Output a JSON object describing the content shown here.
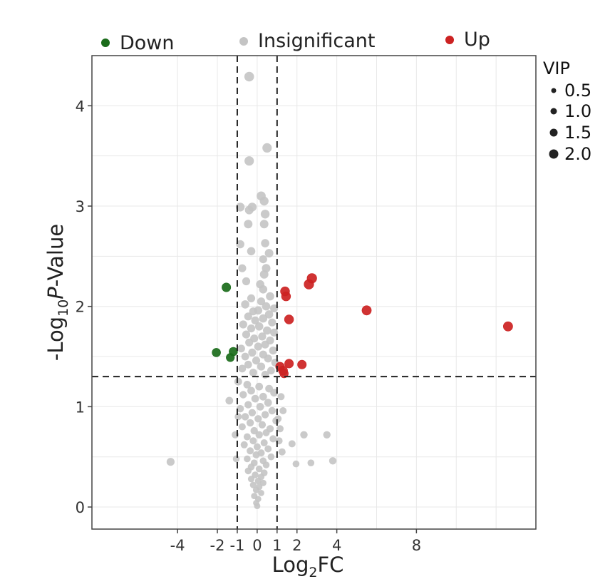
{
  "chart_data": {
    "type": "scatter",
    "title": "",
    "xlabel_main": "Log",
    "xlabel_sub": "2",
    "xlabel_tail": "FC",
    "ylabel_main": "-Log",
    "ylabel_sub": "10",
    "ylabel_italic": "P",
    "ylabel_tail": "-Value",
    "xlim": [
      -8.3,
      14.0
    ],
    "ylim": [
      -0.22,
      4.5
    ],
    "x_ticks": [
      {
        "value": -4,
        "label": "-4"
      },
      {
        "value": -2,
        "label": "-2"
      },
      {
        "value": -1,
        "label": "-1"
      },
      {
        "value": 0,
        "label": "0"
      },
      {
        "value": 1,
        "label": "1"
      },
      {
        "value": 2,
        "label": "2"
      },
      {
        "value": 4,
        "label": "4"
      },
      {
        "value": 8,
        "label": "8"
      }
    ],
    "y_ticks": [
      {
        "value": 0,
        "label": "0"
      },
      {
        "value": 1,
        "label": "1"
      },
      {
        "value": 2,
        "label": "2"
      },
      {
        "value": 3,
        "label": "3"
      },
      {
        "value": 4,
        "label": "4"
      }
    ],
    "x_grid": [
      -4,
      -2,
      0,
      2,
      4,
      6,
      8,
      10,
      12
    ],
    "y_grid": [
      0,
      0.5,
      1,
      1.5,
      2,
      2.5,
      3,
      3.5,
      4
    ],
    "grid": true,
    "thresholds": {
      "x": [
        -1,
        1
      ],
      "y": 1.3
    },
    "legend": {
      "placement": "top",
      "items": [
        {
          "label": "Down",
          "color": "#1a6b1a"
        },
        {
          "label": "Insignificant",
          "color": "#c4c4c4"
        },
        {
          "label": "Up",
          "color": "#cc2222"
        }
      ]
    },
    "size_legend": {
      "title": "VIP",
      "placement": "right",
      "items": [
        {
          "label": "0.5",
          "vip": 0.5
        },
        {
          "label": "1.0",
          "vip": 1.0
        },
        {
          "label": "1.5",
          "vip": 1.5
        },
        {
          "label": "2.0",
          "vip": 2.0
        }
      ]
    },
    "series": [
      {
        "name": "Down",
        "color": "#1a6b1a",
        "points": [
          {
            "x": -1.55,
            "y": 2.19,
            "vip": 1.6
          },
          {
            "x": -2.05,
            "y": 1.54,
            "vip": 1.5
          },
          {
            "x": -1.2,
            "y": 1.55,
            "vip": 1.5
          },
          {
            "x": -1.35,
            "y": 1.49,
            "vip": 1.4
          }
        ]
      },
      {
        "name": "Insignificant",
        "color": "#c4c4c4",
        "points": [
          {
            "x": -4.35,
            "y": 0.45,
            "vip": 1.3
          },
          {
            "x": -0.4,
            "y": 4.29,
            "vip": 1.9
          },
          {
            "x": 0.5,
            "y": 3.58,
            "vip": 1.8
          },
          {
            "x": -0.4,
            "y": 3.45,
            "vip": 1.8
          },
          {
            "x": 0.2,
            "y": 3.1,
            "vip": 1.7
          },
          {
            "x": 0.35,
            "y": 3.05,
            "vip": 1.6
          },
          {
            "x": -0.85,
            "y": 2.99,
            "vip": 1.6
          },
          {
            "x": -0.25,
            "y": 2.99,
            "vip": 1.6
          },
          {
            "x": 0.4,
            "y": 2.92,
            "vip": 1.6
          },
          {
            "x": -0.4,
            "y": 2.96,
            "vip": 1.5
          },
          {
            "x": -0.45,
            "y": 2.82,
            "vip": 1.5
          },
          {
            "x": 0.35,
            "y": 2.82,
            "vip": 1.5
          },
          {
            "x": -0.85,
            "y": 2.62,
            "vip": 1.4
          },
          {
            "x": 0.4,
            "y": 2.63,
            "vip": 1.4
          },
          {
            "x": -0.3,
            "y": 2.55,
            "vip": 1.4
          },
          {
            "x": 0.6,
            "y": 2.53,
            "vip": 1.5
          },
          {
            "x": 0.3,
            "y": 2.47,
            "vip": 1.3
          },
          {
            "x": -0.75,
            "y": 2.38,
            "vip": 1.3
          },
          {
            "x": 0.45,
            "y": 2.38,
            "vip": 1.5
          },
          {
            "x": 0.35,
            "y": 2.32,
            "vip": 1.5
          },
          {
            "x": -0.55,
            "y": 2.25,
            "vip": 1.3
          },
          {
            "x": 0.15,
            "y": 2.22,
            "vip": 1.4
          },
          {
            "x": 0.3,
            "y": 2.17,
            "vip": 1.4
          },
          {
            "x": 0.65,
            "y": 2.1,
            "vip": 1.4
          },
          {
            "x": -0.3,
            "y": 2.08,
            "vip": 1.3
          },
          {
            "x": 0.2,
            "y": 2.05,
            "vip": 1.3
          },
          {
            "x": -0.6,
            "y": 2.02,
            "vip": 1.4
          },
          {
            "x": 0.45,
            "y": 2.0,
            "vip": 1.4
          },
          {
            "x": 0.85,
            "y": 1.98,
            "vip": 1.3
          },
          {
            "x": 0.05,
            "y": 1.96,
            "vip": 1.4
          },
          {
            "x": -0.2,
            "y": 1.95,
            "vip": 1.3
          },
          {
            "x": 0.6,
            "y": 1.92,
            "vip": 1.4
          },
          {
            "x": -0.45,
            "y": 1.9,
            "vip": 1.3
          },
          {
            "x": 0.3,
            "y": 1.88,
            "vip": 1.4
          },
          {
            "x": -0.1,
            "y": 1.86,
            "vip": 1.3
          },
          {
            "x": 0.75,
            "y": 1.84,
            "vip": 1.3
          },
          {
            "x": -0.7,
            "y": 1.82,
            "vip": 1.3
          },
          {
            "x": 0.1,
            "y": 1.8,
            "vip": 1.4
          },
          {
            "x": -0.3,
            "y": 1.78,
            "vip": 1.3
          },
          {
            "x": 0.5,
            "y": 1.76,
            "vip": 1.4
          },
          {
            "x": 0.85,
            "y": 1.74,
            "vip": 1.3
          },
          {
            "x": -0.55,
            "y": 1.72,
            "vip": 1.3
          },
          {
            "x": 0.25,
            "y": 1.7,
            "vip": 1.3
          },
          {
            "x": -0.15,
            "y": 1.68,
            "vip": 1.3
          },
          {
            "x": 0.65,
            "y": 1.66,
            "vip": 1.3
          },
          {
            "x": -0.4,
            "y": 1.64,
            "vip": 1.3
          },
          {
            "x": 0.4,
            "y": 1.62,
            "vip": 1.3
          },
          {
            "x": 0.05,
            "y": 1.6,
            "vip": 1.3
          },
          {
            "x": -0.8,
            "y": 1.58,
            "vip": 1.2
          },
          {
            "x": 0.8,
            "y": 1.56,
            "vip": 1.3
          },
          {
            "x": -0.25,
            "y": 1.54,
            "vip": 1.3
          },
          {
            "x": 0.3,
            "y": 1.52,
            "vip": 1.3
          },
          {
            "x": -0.6,
            "y": 1.5,
            "vip": 1.2
          },
          {
            "x": 0.55,
            "y": 1.48,
            "vip": 1.3
          },
          {
            "x": -0.05,
            "y": 1.46,
            "vip": 1.3
          },
          {
            "x": 0.9,
            "y": 1.44,
            "vip": 1.2
          },
          {
            "x": -0.45,
            "y": 1.42,
            "vip": 1.2
          },
          {
            "x": 0.2,
            "y": 1.4,
            "vip": 1.3
          },
          {
            "x": -0.75,
            "y": 1.38,
            "vip": 1.2
          },
          {
            "x": 0.7,
            "y": 1.36,
            "vip": 1.2
          },
          {
            "x": -0.2,
            "y": 1.34,
            "vip": 1.2
          },
          {
            "x": 0.4,
            "y": 1.32,
            "vip": 1.2
          },
          {
            "x": -0.95,
            "y": 1.25,
            "vip": 1.2
          },
          {
            "x": -0.5,
            "y": 1.22,
            "vip": 1.2
          },
          {
            "x": 0.1,
            "y": 1.2,
            "vip": 1.2
          },
          {
            "x": 0.6,
            "y": 1.18,
            "vip": 1.2
          },
          {
            "x": -0.3,
            "y": 1.16,
            "vip": 1.2
          },
          {
            "x": 0.85,
            "y": 1.14,
            "vip": 1.2
          },
          {
            "x": -0.7,
            "y": 1.12,
            "vip": 1.1
          },
          {
            "x": 0.3,
            "y": 1.1,
            "vip": 1.2
          },
          {
            "x": -0.1,
            "y": 1.08,
            "vip": 1.2
          },
          {
            "x": -1.4,
            "y": 1.06,
            "vip": 1.2
          },
          {
            "x": 0.55,
            "y": 1.04,
            "vip": 1.2
          },
          {
            "x": -0.45,
            "y": 1.02,
            "vip": 1.1
          },
          {
            "x": 0.15,
            "y": 1.0,
            "vip": 1.2
          },
          {
            "x": -0.85,
            "y": 0.98,
            "vip": 1.1
          },
          {
            "x": 0.75,
            "y": 0.96,
            "vip": 1.1
          },
          {
            "x": -0.25,
            "y": 0.94,
            "vip": 1.1
          },
          {
            "x": 0.4,
            "y": 0.92,
            "vip": 1.1
          },
          {
            "x": -0.6,
            "y": 0.9,
            "vip": 1.1
          },
          {
            "x": 0.05,
            "y": 0.88,
            "vip": 1.1
          },
          {
            "x": 0.95,
            "y": 0.86,
            "vip": 1.1
          },
          {
            "x": -0.35,
            "y": 0.84,
            "vip": 1.1
          },
          {
            "x": 0.25,
            "y": 0.82,
            "vip": 1.1
          },
          {
            "x": -0.75,
            "y": 0.8,
            "vip": 1.0
          },
          {
            "x": 0.65,
            "y": 0.78,
            "vip": 1.1
          },
          {
            "x": -0.15,
            "y": 0.76,
            "vip": 1.1
          },
          {
            "x": 0.45,
            "y": 0.74,
            "vip": 1.0
          },
          {
            "x": -1.1,
            "y": 0.72,
            "vip": 1.0
          },
          {
            "x": 0.1,
            "y": 0.72,
            "vip": 1.1
          },
          {
            "x": -0.5,
            "y": 0.7,
            "vip": 1.0
          },
          {
            "x": 0.8,
            "y": 0.68,
            "vip": 1.0
          },
          {
            "x": -0.2,
            "y": 0.66,
            "vip": 1.0
          },
          {
            "x": 0.35,
            "y": 0.64,
            "vip": 1.0
          },
          {
            "x": -0.65,
            "y": 0.62,
            "vip": 1.0
          },
          {
            "x": 0.0,
            "y": 0.6,
            "vip": 1.0
          },
          {
            "x": 0.55,
            "y": 0.58,
            "vip": 1.0
          },
          {
            "x": -0.35,
            "y": 0.56,
            "vip": 1.0
          },
          {
            "x": 0.2,
            "y": 0.54,
            "vip": 1.0
          },
          {
            "x": -0.05,
            "y": 0.52,
            "vip": 1.0
          },
          {
            "x": 0.7,
            "y": 0.5,
            "vip": 0.9
          },
          {
            "x": -0.5,
            "y": 0.48,
            "vip": 0.9
          },
          {
            "x": 0.3,
            "y": 0.46,
            "vip": 0.9
          },
          {
            "x": -0.15,
            "y": 0.44,
            "vip": 0.9
          },
          {
            "x": 0.45,
            "y": 0.42,
            "vip": 0.9
          },
          {
            "x": -0.3,
            "y": 0.4,
            "vip": 0.9
          },
          {
            "x": 0.1,
            "y": 0.38,
            "vip": 0.9
          },
          {
            "x": -0.45,
            "y": 0.36,
            "vip": 0.9
          },
          {
            "x": 0.35,
            "y": 0.34,
            "vip": 0.9
          },
          {
            "x": -0.1,
            "y": 0.32,
            "vip": 0.9
          },
          {
            "x": 0.2,
            "y": 0.3,
            "vip": 0.8
          },
          {
            "x": -0.3,
            "y": 0.28,
            "vip": 0.8
          },
          {
            "x": 0.05,
            "y": 0.26,
            "vip": 0.8
          },
          {
            "x": 0.3,
            "y": 0.24,
            "vip": 0.8
          },
          {
            "x": -0.2,
            "y": 0.22,
            "vip": 0.8
          },
          {
            "x": 0.1,
            "y": 0.2,
            "vip": 0.8
          },
          {
            "x": -0.05,
            "y": 0.17,
            "vip": 0.8
          },
          {
            "x": 0.2,
            "y": 0.14,
            "vip": 0.7
          },
          {
            "x": -0.15,
            "y": 0.11,
            "vip": 0.7
          },
          {
            "x": 0.05,
            "y": 0.08,
            "vip": 0.7
          },
          {
            "x": -0.05,
            "y": 0.04,
            "vip": 0.7
          },
          {
            "x": 0.0,
            "y": 0.01,
            "vip": 0.7
          },
          {
            "x": 1.05,
            "y": 0.88,
            "vip": 1.0
          },
          {
            "x": 1.15,
            "y": 0.78,
            "vip": 1.0
          },
          {
            "x": 1.25,
            "y": 0.55,
            "vip": 1.0
          },
          {
            "x": 1.1,
            "y": 0.66,
            "vip": 1.0
          },
          {
            "x": 1.75,
            "y": 0.63,
            "vip": 1.0
          },
          {
            "x": 2.35,
            "y": 0.72,
            "vip": 1.1
          },
          {
            "x": 1.95,
            "y": 0.43,
            "vip": 0.9
          },
          {
            "x": 2.7,
            "y": 0.44,
            "vip": 0.9
          },
          {
            "x": 3.5,
            "y": 0.72,
            "vip": 1.1
          },
          {
            "x": 3.8,
            "y": 0.46,
            "vip": 1.1
          },
          {
            "x": -1.05,
            "y": 0.48,
            "vip": 0.9
          },
          {
            "x": -0.95,
            "y": 0.9,
            "vip": 1.0
          },
          {
            "x": 1.2,
            "y": 1.1,
            "vip": 1.0
          },
          {
            "x": 1.3,
            "y": 0.96,
            "vip": 1.0
          }
        ]
      },
      {
        "name": "Up",
        "color": "#cc2222",
        "points": [
          {
            "x": 2.75,
            "y": 2.28,
            "vip": 1.9
          },
          {
            "x": 2.6,
            "y": 2.22,
            "vip": 1.9
          },
          {
            "x": 1.4,
            "y": 2.15,
            "vip": 1.7
          },
          {
            "x": 1.45,
            "y": 2.1,
            "vip": 1.7
          },
          {
            "x": 5.5,
            "y": 1.96,
            "vip": 1.8
          },
          {
            "x": 1.6,
            "y": 1.87,
            "vip": 1.7
          },
          {
            "x": 12.6,
            "y": 1.8,
            "vip": 1.8
          },
          {
            "x": 1.6,
            "y": 1.43,
            "vip": 1.6
          },
          {
            "x": 2.25,
            "y": 1.42,
            "vip": 1.6
          },
          {
            "x": 1.15,
            "y": 1.4,
            "vip": 1.6
          },
          {
            "x": 1.3,
            "y": 1.36,
            "vip": 1.7
          },
          {
            "x": 1.35,
            "y": 1.33,
            "vip": 1.5
          }
        ]
      }
    ]
  }
}
